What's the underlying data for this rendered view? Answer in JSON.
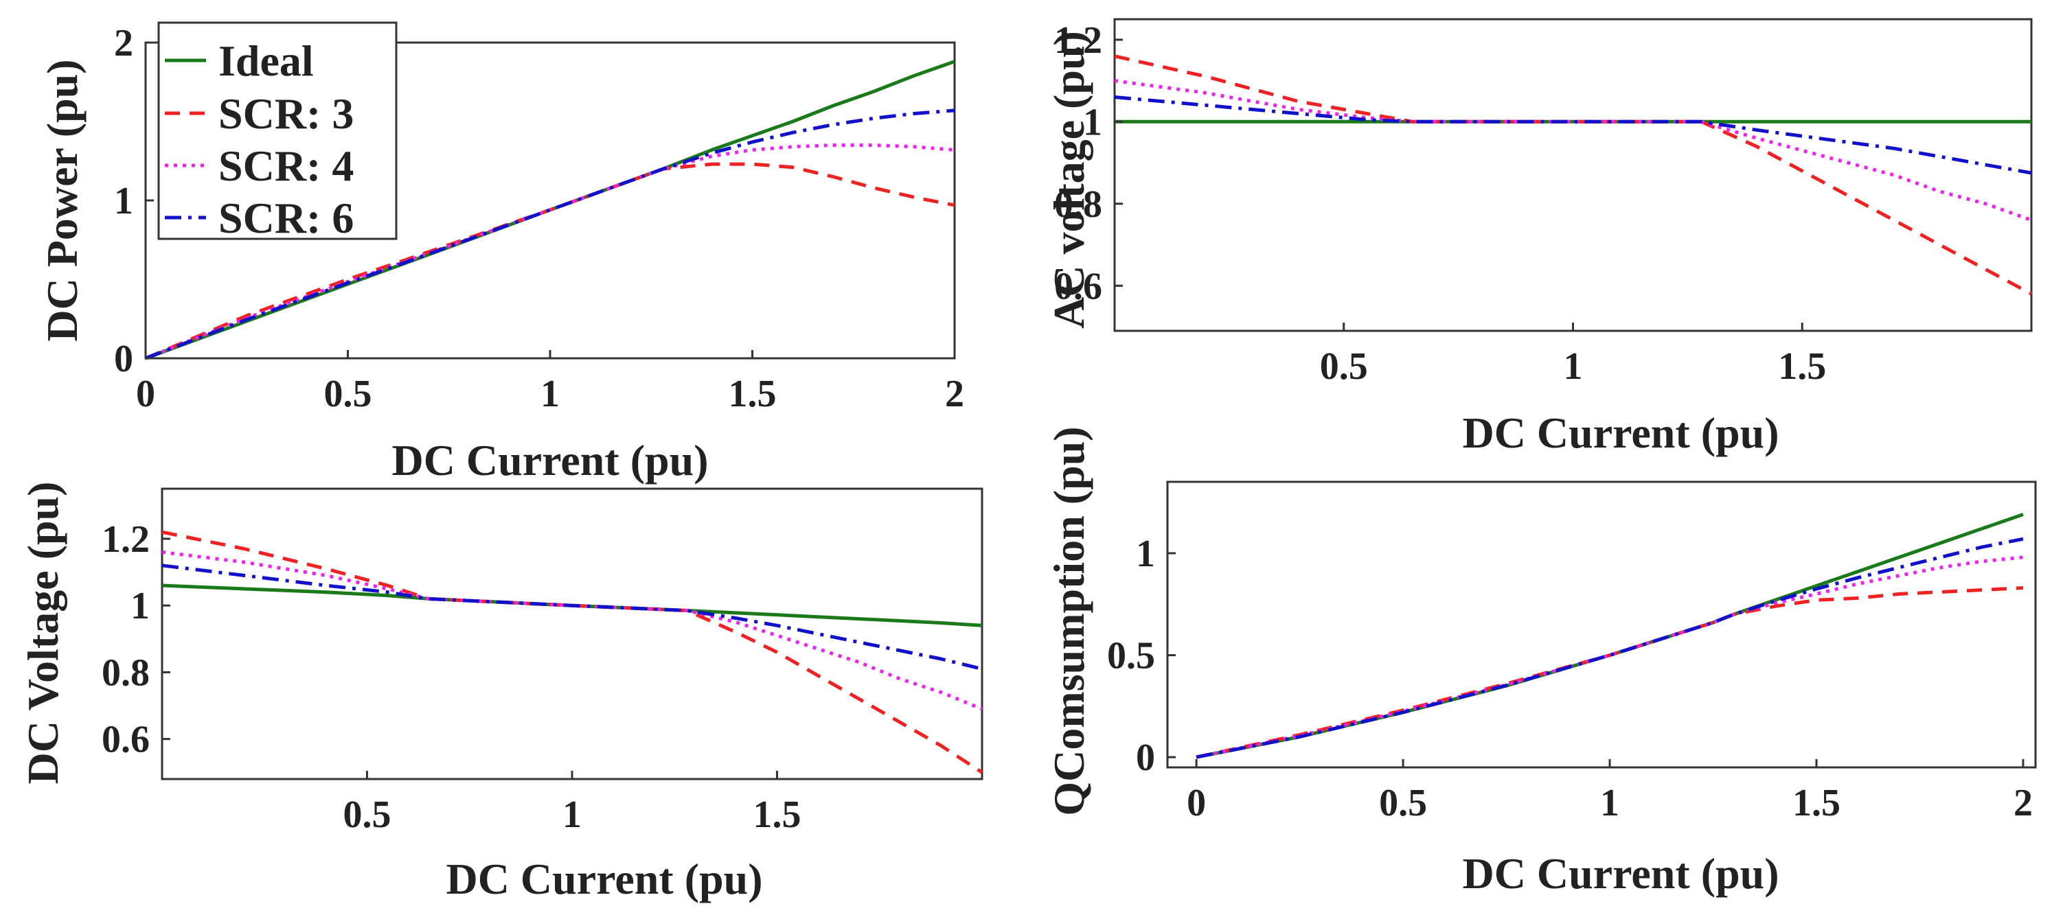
{
  "colors": {
    "ideal": "#1a7a1a",
    "scr3": "#ee2222",
    "scr4": "#ee22ee",
    "scr6": "#1111cc"
  },
  "chart_data": [
    {
      "id": "dc-power",
      "type": "line",
      "title": "",
      "xlabel": "DC Current (pu)",
      "ylabel": "DC Power (pu)",
      "xlim": [
        0,
        2
      ],
      "ylim": [
        0,
        2
      ],
      "xticks": [
        "0",
        "0.5",
        "1",
        "1.5",
        "2"
      ],
      "xtick_values": [
        0,
        0.5,
        1,
        1.5,
        2
      ],
      "yticks": [
        "0",
        "1",
        "2"
      ],
      "ytick_values": [
        0,
        1,
        2
      ],
      "legend": {
        "location": "top-left",
        "entries": [
          "Ideal",
          "SCR: 3",
          "SCR: 4",
          "SCR: 6"
        ]
      },
      "x": [
        0,
        0.25,
        0.5,
        0.65,
        1.0,
        1.28,
        1.4,
        1.5,
        1.6,
        1.7,
        1.8,
        1.9,
        2.0
      ],
      "series": [
        {
          "name": "Ideal",
          "style": "solid",
          "values": [
            0,
            0.235,
            0.47,
            0.61,
            0.94,
            1.2,
            1.32,
            1.41,
            1.5,
            1.6,
            1.69,
            1.79,
            1.88
          ]
        },
        {
          "name": "SCR: 3",
          "style": "dashed",
          "values": [
            0,
            0.27,
            0.5,
            0.63,
            0.94,
            1.2,
            1.23,
            1.23,
            1.21,
            1.15,
            1.08,
            1.02,
            0.97
          ]
        },
        {
          "name": "SCR: 4",
          "style": "dotted",
          "values": [
            0,
            0.255,
            0.485,
            0.62,
            0.94,
            1.2,
            1.28,
            1.32,
            1.34,
            1.35,
            1.35,
            1.34,
            1.32
          ]
        },
        {
          "name": "SCR: 6",
          "style": "dashdot",
          "values": [
            0,
            0.245,
            0.478,
            0.615,
            0.94,
            1.2,
            1.3,
            1.37,
            1.43,
            1.48,
            1.52,
            1.55,
            1.57
          ]
        }
      ]
    },
    {
      "id": "ac-voltage",
      "type": "line",
      "title": "",
      "xlabel": "DC Current (pu)",
      "ylabel": "AC voltage (pu)",
      "xlim": [
        0,
        2
      ],
      "ylim": [
        0.49,
        1.25
      ],
      "xticks": [
        "0.5",
        "1",
        "1.5"
      ],
      "xtick_values": [
        0.5,
        1,
        1.5
      ],
      "yticks": [
        "0.6",
        "0.8",
        "1",
        "1.2"
      ],
      "ytick_values": [
        0.6,
        0.8,
        1.0,
        1.2
      ],
      "x": [
        0,
        0.2,
        0.4,
        0.55,
        0.65,
        1.0,
        1.28,
        1.4,
        1.5,
        1.6,
        1.7,
        1.8,
        1.9,
        2.0
      ],
      "series": [
        {
          "name": "Ideal",
          "style": "solid",
          "values": [
            1,
            1,
            1,
            1,
            1,
            1,
            1,
            1,
            1,
            1,
            1,
            1,
            1,
            1
          ]
        },
        {
          "name": "SCR: 3",
          "style": "dashed",
          "values": [
            1.16,
            1.11,
            1.05,
            1.02,
            1.0,
            1.0,
            1.0,
            0.94,
            0.88,
            0.82,
            0.76,
            0.7,
            0.64,
            0.58
          ]
        },
        {
          "name": "SCR: 4",
          "style": "dotted",
          "values": [
            1.1,
            1.07,
            1.03,
            1.01,
            1.0,
            1.0,
            1.0,
            0.96,
            0.93,
            0.9,
            0.87,
            0.83,
            0.8,
            0.76
          ]
        },
        {
          "name": "SCR: 6",
          "style": "dashdot",
          "values": [
            1.06,
            1.04,
            1.02,
            1.005,
            1.0,
            1.0,
            1.0,
            0.98,
            0.965,
            0.95,
            0.935,
            0.915,
            0.895,
            0.875
          ]
        }
      ]
    },
    {
      "id": "dc-voltage",
      "type": "line",
      "title": "",
      "xlabel": "DC Current (pu)",
      "ylabel": "DC Voltage (pu)",
      "xlim": [
        0,
        2
      ],
      "ylim": [
        0.48,
        1.35
      ],
      "xticks": [
        "0.5",
        "1",
        "1.5"
      ],
      "xtick_values": [
        0.5,
        1,
        1.5
      ],
      "yticks": [
        "0.6",
        "0.8",
        "1",
        "1.2"
      ],
      "ytick_values": [
        0.6,
        0.8,
        1.0,
        1.2
      ],
      "x": [
        0,
        0.2,
        0.4,
        0.55,
        0.65,
        1.0,
        1.28,
        1.4,
        1.5,
        1.6,
        1.7,
        1.8,
        1.9,
        2.0
      ],
      "series": [
        {
          "name": "Ideal",
          "style": "solid",
          "values": [
            1.06,
            1.05,
            1.04,
            1.03,
            1.02,
            1.0,
            0.985,
            0.978,
            0.972,
            0.966,
            0.96,
            0.954,
            0.948,
            0.94
          ]
        },
        {
          "name": "SCR: 3",
          "style": "dashed",
          "values": [
            1.22,
            1.17,
            1.11,
            1.06,
            1.02,
            1.0,
            0.985,
            0.92,
            0.86,
            0.79,
            0.72,
            0.65,
            0.58,
            0.5
          ]
        },
        {
          "name": "SCR: 4",
          "style": "dotted",
          "values": [
            1.16,
            1.13,
            1.09,
            1.05,
            1.02,
            1.0,
            0.985,
            0.95,
            0.91,
            0.87,
            0.83,
            0.78,
            0.74,
            0.69
          ]
        },
        {
          "name": "SCR: 6",
          "style": "dashdot",
          "values": [
            1.12,
            1.09,
            1.06,
            1.04,
            1.02,
            1.0,
            0.985,
            0.962,
            0.94,
            0.915,
            0.89,
            0.865,
            0.84,
            0.81
          ]
        }
      ]
    },
    {
      "id": "q-consumption",
      "type": "line",
      "title": "",
      "xlabel": "DC Current (pu)",
      "ylabel": "QComsumption (pu)",
      "xlim": [
        -0.07,
        2.03
      ],
      "ylim": [
        -0.05,
        1.35
      ],
      "xticks": [
        "0",
        "0.5",
        "1",
        "1.5",
        "2"
      ],
      "xtick_values": [
        0,
        0.5,
        1,
        1.5,
        2
      ],
      "yticks": [
        "0",
        "0.5",
        "1"
      ],
      "ytick_values": [
        0,
        0.5,
        1
      ],
      "x": [
        0,
        0.25,
        0.5,
        0.75,
        1.0,
        1.25,
        1.3,
        1.4,
        1.5,
        1.6,
        1.7,
        1.8,
        1.9,
        2.0
      ],
      "series": [
        {
          "name": "Ideal",
          "style": "solid",
          "values": [
            0,
            0.1,
            0.22,
            0.35,
            0.5,
            0.66,
            0.7,
            0.77,
            0.84,
            0.91,
            0.98,
            1.05,
            1.12,
            1.19
          ]
        },
        {
          "name": "SCR: 3",
          "style": "dashed",
          "values": [
            0,
            0.11,
            0.23,
            0.36,
            0.5,
            0.66,
            0.7,
            0.74,
            0.77,
            0.78,
            0.8,
            0.81,
            0.82,
            0.83
          ]
        },
        {
          "name": "SCR: 4",
          "style": "dotted",
          "values": [
            0,
            0.105,
            0.225,
            0.355,
            0.5,
            0.66,
            0.7,
            0.755,
            0.8,
            0.85,
            0.89,
            0.93,
            0.96,
            0.98
          ]
        },
        {
          "name": "SCR: 6",
          "style": "dashdot",
          "values": [
            0,
            0.1,
            0.22,
            0.352,
            0.5,
            0.66,
            0.7,
            0.765,
            0.825,
            0.88,
            0.93,
            0.98,
            1.03,
            1.07
          ]
        }
      ]
    }
  ]
}
